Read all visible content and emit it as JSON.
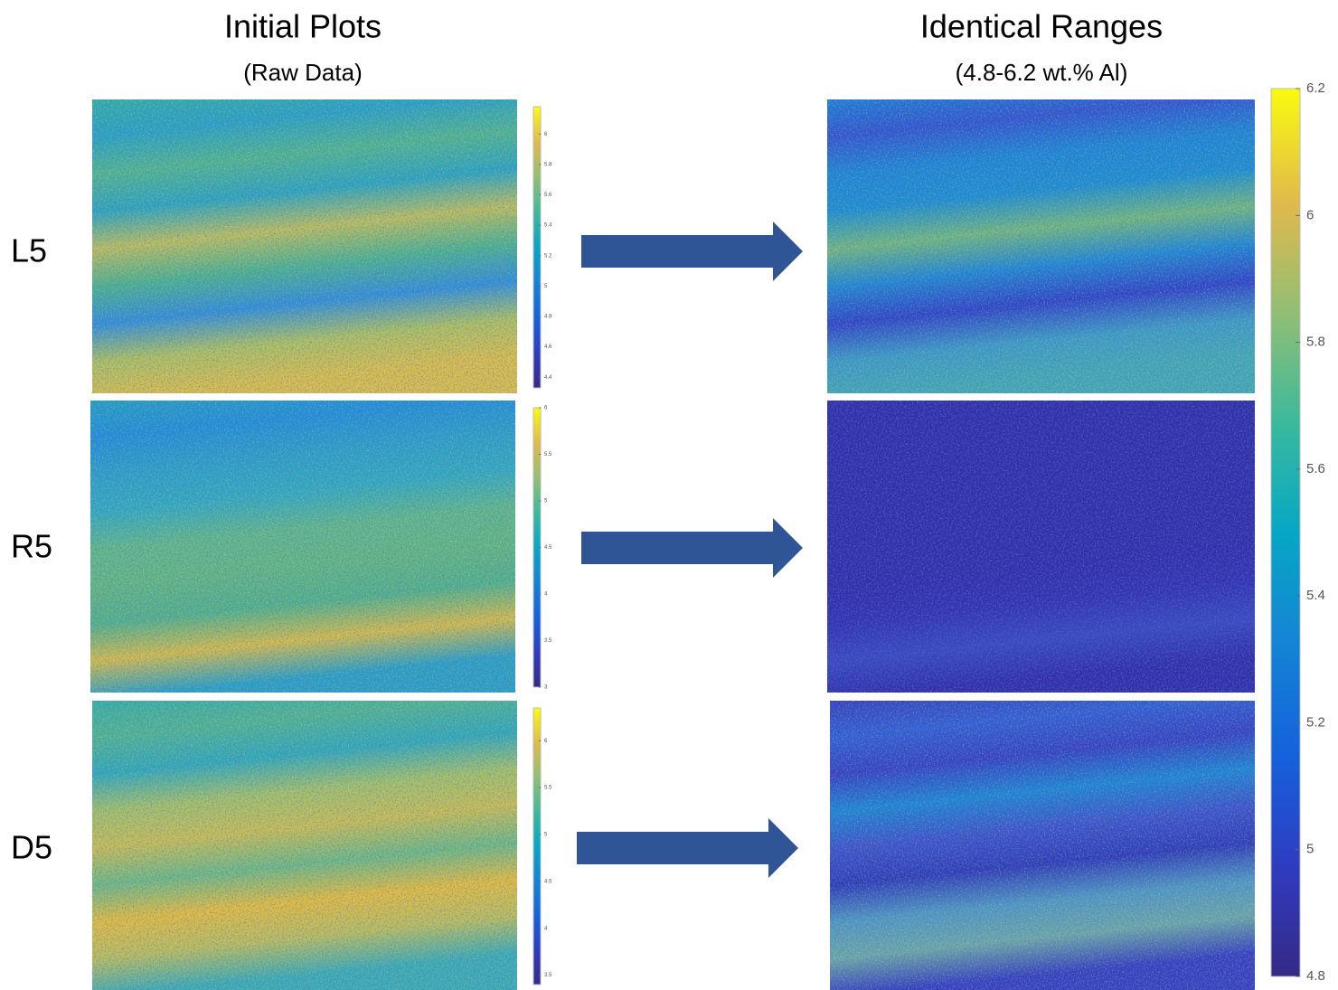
{
  "columns": [
    {
      "title": "Initial Plots",
      "subtitle": "(Raw Data)"
    },
    {
      "title": "Identical Ranges",
      "subtitle": "(4.8-6.2 wt.% Al)"
    }
  ],
  "rows": [
    {
      "label": "L5",
      "colorbar": {
        "lim": [
          4.33,
          6.18
        ],
        "ticks": [
          4.4,
          4.6,
          4.8,
          5,
          5.2,
          5.4,
          5.6,
          5.8,
          6
        ]
      }
    },
    {
      "label": "R5",
      "colorbar": {
        "lim": [
          3,
          6
        ],
        "ticks": [
          3,
          3.5,
          4,
          4.5,
          5,
          5.5,
          6
        ]
      }
    },
    {
      "label": "D5",
      "colorbar": {
        "lim": [
          3.4,
          6.35
        ],
        "ticks": [
          3.5,
          4,
          4.5,
          5,
          5.5,
          6
        ]
      }
    }
  ],
  "shared_colorbar": {
    "lim": [
      4.8,
      6.2
    ],
    "ticks": [
      4.8,
      5,
      5.2,
      5.4,
      5.6,
      5.8,
      6,
      6.2
    ]
  }
}
